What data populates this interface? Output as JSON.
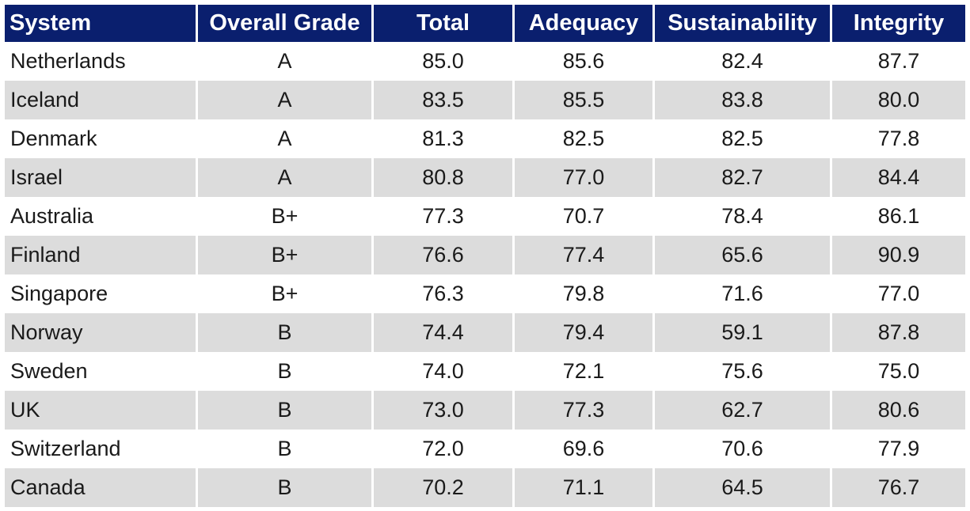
{
  "table": {
    "headers": [
      "System",
      "Overall Grade",
      "Total",
      "Adequacy",
      "Sustainability",
      "Integrity"
    ],
    "rows": [
      [
        "Netherlands",
        "A",
        "85.0",
        "85.6",
        "82.4",
        "87.7"
      ],
      [
        "Iceland",
        "A",
        "83.5",
        "85.5",
        "83.8",
        "80.0"
      ],
      [
        "Denmark",
        "A",
        "81.3",
        "82.5",
        "82.5",
        "77.8"
      ],
      [
        "Israel",
        "A",
        "80.8",
        "77.0",
        "82.7",
        "84.4"
      ],
      [
        "Australia",
        "B+",
        "77.3",
        "70.7",
        "78.4",
        "86.1"
      ],
      [
        "Finland",
        "B+",
        "76.6",
        "77.4",
        "65.6",
        "90.9"
      ],
      [
        "Singapore",
        "B+",
        "76.3",
        "79.8",
        "71.6",
        "77.0"
      ],
      [
        "Norway",
        "B",
        "74.4",
        "79.4",
        "59.1",
        "87.8"
      ],
      [
        "Sweden",
        "B",
        "74.0",
        "72.1",
        "75.6",
        "75.0"
      ],
      [
        "UK",
        "B",
        "73.0",
        "77.3",
        "62.7",
        "80.6"
      ],
      [
        "Switzerland",
        "B",
        "72.0",
        "69.6",
        "70.6",
        "77.9"
      ],
      [
        "Canada",
        "B",
        "70.2",
        "71.1",
        "64.5",
        "76.7"
      ]
    ]
  },
  "colors": {
    "header_background": "#0a1f6e",
    "header_text": "#ffffff",
    "alternate_row_background": "#dcdcdc",
    "row_background": "#ffffff"
  }
}
